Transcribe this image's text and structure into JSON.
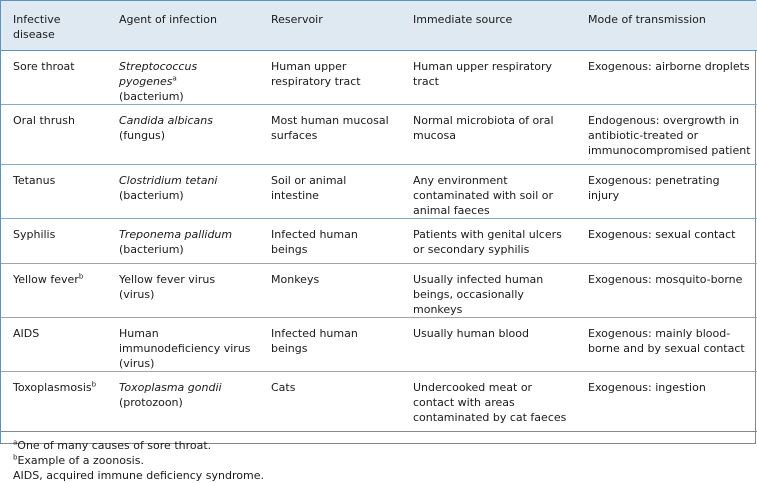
{
  "headers": [
    "Infective disease",
    "Agent of infection",
    "Reservoir",
    "Immediate source",
    "Mode of transmission"
  ],
  "rows": [
    {
      "disease": "Sore throat",
      "disease_sup": "",
      "agent_italic": "Streptococcus pyogenes",
      "agent_sup": "a",
      "agent_rest": "(bacterium)",
      "reservoir": "Human upper respiratory tract",
      "source": "Human upper respiratory tract",
      "transmission": "Exogenous: airborne droplets"
    },
    {
      "disease": "Oral thrush",
      "disease_sup": "",
      "agent_italic": "Candida albicans",
      "agent_sup": "",
      "agent_rest": "(fungus)",
      "reservoir": "Most human mucosal surfaces",
      "source": "Normal microbiota of oral mucosa",
      "transmission": "Endogenous: overgrowth in antibiotic-treated or immunocompromised patient"
    },
    {
      "disease": "Tetanus",
      "disease_sup": "",
      "agent_italic": "Clostridium tetani",
      "agent_sup": "",
      "agent_rest": "(bacterium)",
      "reservoir": "Soil or animal intestine",
      "source": "Any environment contaminated with soil or animal faeces",
      "transmission": "Exogenous: penetrating injury"
    },
    {
      "disease": "Syphilis",
      "disease_sup": "",
      "agent_italic": "Treponema pallidum",
      "agent_sup": "",
      "agent_rest": "(bacterium)",
      "reservoir": "Infected human beings",
      "source": "Patients with genital ulcers or secondary syphilis",
      "transmission": "Exogenous: sexual contact"
    },
    {
      "disease": "Yellow fever",
      "disease_sup": "b",
      "agent_italic": "",
      "agent_sup": "",
      "agent_rest": "Yellow fever virus (virus)",
      "reservoir": "Monkeys",
      "source": "Usually infected human beings, occasionally monkeys",
      "transmission": "Exogenous: mosquito-borne"
    },
    {
      "disease": "AIDS",
      "disease_sup": "",
      "agent_italic": "",
      "agent_sup": "",
      "agent_rest": "Human immunodeficiency virus (virus)",
      "reservoir": "Infected human beings",
      "source": "Usually human blood",
      "transmission": "Exogenous: mainly blood-borne and by sexual contact"
    },
    {
      "disease": "Toxoplasmosis",
      "disease_sup": "b",
      "agent_italic": "Toxoplasma gondii",
      "agent_sup": "",
      "agent_rest": "(protozoon)",
      "reservoir": "Cats",
      "source": "Undercooked meat or contact with areas contaminated by cat faeces",
      "transmission": "Exogenous: ingestion"
    }
  ],
  "footnotes": [
    {
      "mark": "a",
      "text": "One of many causes of sore throat."
    },
    {
      "mark": "b",
      "text": "Example of a zoonosis."
    },
    {
      "mark": "",
      "text": "AIDS, acquired immune deficiency syndrome."
    }
  ]
}
